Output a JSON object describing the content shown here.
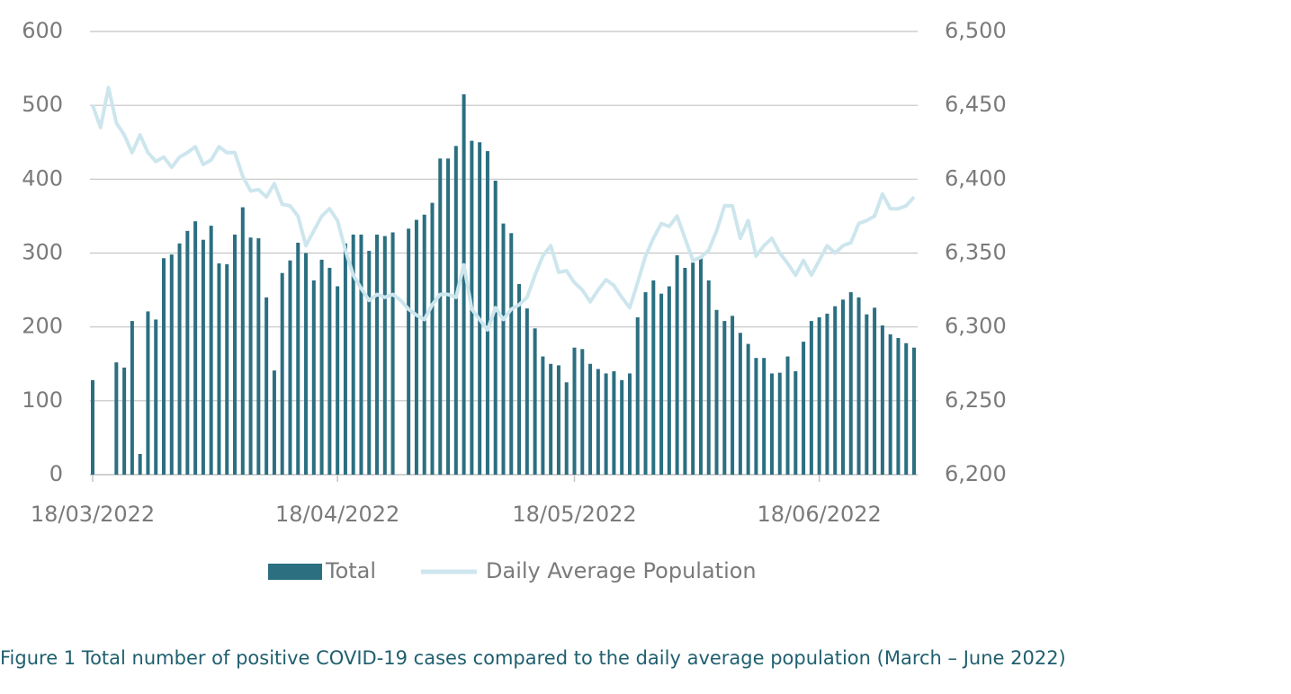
{
  "chart_data": {
    "type": "combo",
    "caption": "Figure 1 Total number of positive COVID-19 cases compared to the daily average population (March – June 2022)",
    "categories": [
      "18/03/2022",
      null,
      null,
      null,
      null,
      null,
      null,
      null,
      null,
      null,
      null,
      null,
      null,
      null,
      null,
      null,
      null,
      null,
      null,
      null,
      null,
      null,
      null,
      null,
      null,
      null,
      null,
      null,
      null,
      null,
      null,
      "18/04/2022",
      null,
      null,
      null,
      null,
      null,
      null,
      null,
      null,
      null,
      null,
      null,
      null,
      null,
      null,
      null,
      null,
      null,
      null,
      null,
      null,
      null,
      null,
      null,
      null,
      null,
      null,
      null,
      null,
      null,
      "18/05/2022",
      null,
      null,
      null,
      null,
      null,
      null,
      null,
      null,
      null,
      null,
      null,
      null,
      null,
      null,
      null,
      null,
      null,
      null,
      null,
      null,
      null,
      null,
      null,
      null,
      null,
      null,
      null,
      null,
      null,
      null,
      "18/06/2022",
      null,
      null,
      null,
      null,
      null,
      null,
      null,
      null,
      null,
      null,
      null,
      null
    ],
    "series": [
      {
        "name": "Total",
        "type": "bar",
        "color": "#2b6f81",
        "values": [
          128,
          null,
          null,
          152,
          145,
          208,
          28,
          221,
          210,
          293,
          298,
          313,
          330,
          343,
          318,
          337,
          286,
          285,
          325,
          362,
          321,
          320,
          240,
          141,
          273,
          290,
          314,
          300,
          263,
          291,
          280,
          255,
          313,
          325,
          325,
          303,
          325,
          323,
          328,
          null,
          333,
          345,
          352,
          368,
          428,
          428,
          445,
          515,
          452,
          450,
          438,
          398,
          340,
          327,
          258,
          225,
          198,
          160,
          150,
          148,
          125,
          172,
          170,
          150,
          143,
          137,
          140,
          128,
          137,
          213,
          247,
          263,
          245,
          255,
          297,
          280,
          287,
          296,
          263,
          223,
          208,
          215,
          192,
          177,
          158,
          158,
          137,
          138,
          160,
          140,
          180,
          208,
          213,
          218,
          228,
          237,
          247,
          240,
          217,
          226,
          202,
          190,
          185,
          178,
          172
        ]
      },
      {
        "name": "Daily Average Population",
        "type": "line",
        "axis": "y2",
        "color": "#cde6ee",
        "values": [
          6450,
          6435,
          6462,
          6438,
          6430,
          6418,
          6430,
          6418,
          6412,
          6415,
          6408,
          6415,
          6418,
          6422,
          6410,
          6413,
          6422,
          6418,
          6418,
          6402,
          6392,
          6393,
          6388,
          6397,
          6383,
          6382,
          6375,
          6355,
          6365,
          6375,
          6380,
          6372,
          6352,
          6335,
          6326,
          6318,
          6322,
          6320,
          6322,
          6318,
          6312,
          6308,
          6305,
          6315,
          6322,
          6322,
          6320,
          6342,
          6312,
          6305,
          6298,
          6313,
          6305,
          6312,
          6315,
          6320,
          6335,
          6348,
          6355,
          6337,
          6338,
          6330,
          6325,
          6317,
          6325,
          6332,
          6328,
          6320,
          6313,
          6330,
          6348,
          6360,
          6370,
          6368,
          6375,
          6360,
          6345,
          6347,
          6352,
          6365,
          6382,
          6382,
          6360,
          6372,
          6348,
          6355,
          6360,
          6350,
          6343,
          6335,
          6345,
          6335,
          6345,
          6355,
          6350,
          6355,
          6357,
          6370,
          6372,
          6375,
          6390,
          6380,
          6380,
          6382,
          6388
        ]
      }
    ],
    "ylim": [
      0,
      600
    ],
    "yticks": [
      0,
      100,
      200,
      300,
      400,
      500,
      600
    ],
    "y2lim": [
      6200,
      6500
    ],
    "y2ticks": [
      {
        "value": 6200,
        "label": "6,200"
      },
      {
        "value": 6250,
        "label": "6,250"
      },
      {
        "value": 6300,
        "label": "6,300"
      },
      {
        "value": 6350,
        "label": "6,350"
      },
      {
        "value": 6400,
        "label": "6,400"
      },
      {
        "value": 6450,
        "label": "6,450"
      },
      {
        "value": 6500,
        "label": "6,500"
      }
    ],
    "grid": true,
    "legend": "bottom"
  }
}
